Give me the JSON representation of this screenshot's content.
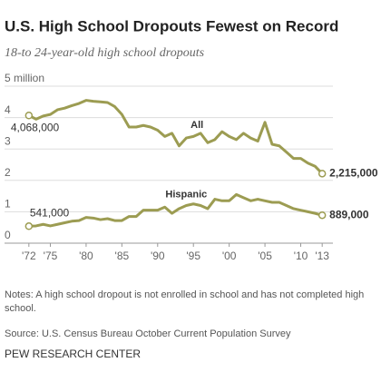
{
  "chart_data": {
    "type": "line",
    "title": "U.S. High School Dropouts Fewest on Record",
    "subtitle": "18-to 24-year-old high school dropouts",
    "x": [
      1972,
      1973,
      1974,
      1975,
      1976,
      1977,
      1978,
      1979,
      1980,
      1981,
      1982,
      1983,
      1984,
      1985,
      1986,
      1987,
      1988,
      1989,
      1990,
      1991,
      1992,
      1993,
      1994,
      1995,
      1996,
      1997,
      1998,
      1999,
      2000,
      2001,
      2002,
      2003,
      2004,
      2005,
      2006,
      2007,
      2008,
      2009,
      2010,
      2011,
      2012,
      2013
    ],
    "series": [
      {
        "name": "All",
        "color": "#9c9c52",
        "values": [
          4.068,
          3.95,
          4.05,
          4.1,
          4.25,
          4.3,
          4.38,
          4.45,
          4.55,
          4.52,
          4.5,
          4.48,
          4.35,
          4.1,
          3.7,
          3.7,
          3.75,
          3.7,
          3.6,
          3.4,
          3.5,
          3.1,
          3.35,
          3.4,
          3.5,
          3.2,
          3.3,
          3.55,
          3.4,
          3.3,
          3.5,
          3.35,
          3.25,
          3.85,
          3.15,
          3.1,
          2.9,
          2.7,
          2.7,
          2.55,
          2.45,
          2.215
        ],
        "value_labels": [
          "4,068,000",
          null,
          null,
          null,
          null,
          null,
          null,
          null,
          null,
          null,
          null,
          null,
          null,
          null,
          null,
          null,
          null,
          null,
          null,
          null,
          null,
          null,
          null,
          null,
          null,
          null,
          null,
          null,
          null,
          null,
          null,
          null,
          null,
          null,
          null,
          null,
          null,
          null,
          null,
          null,
          null,
          "2,215,000"
        ]
      },
      {
        "name": "Hispanic",
        "color": "#9c9c52",
        "values": [
          0.541,
          0.55,
          0.6,
          0.55,
          0.6,
          0.65,
          0.7,
          0.72,
          0.82,
          0.8,
          0.75,
          0.78,
          0.72,
          0.72,
          0.85,
          0.85,
          1.05,
          1.05,
          1.05,
          1.15,
          0.95,
          1.1,
          1.2,
          1.25,
          1.2,
          1.1,
          1.4,
          1.35,
          1.35,
          1.55,
          1.45,
          1.35,
          1.4,
          1.35,
          1.3,
          1.3,
          1.2,
          1.1,
          1.05,
          1.0,
          0.95,
          0.889
        ],
        "value_labels": [
          "541,000",
          null,
          null,
          null,
          null,
          null,
          null,
          null,
          null,
          null,
          null,
          null,
          null,
          null,
          null,
          null,
          null,
          null,
          null,
          null,
          null,
          null,
          null,
          null,
          null,
          null,
          null,
          null,
          null,
          null,
          null,
          null,
          null,
          null,
          null,
          null,
          null,
          null,
          null,
          null,
          null,
          "889,000"
        ]
      }
    ],
    "xlim": [
      1970.5,
      2014.5
    ],
    "xticks": [
      {
        "value": 1972,
        "label": "'72"
      },
      {
        "value": 1975,
        "label": "'75"
      },
      {
        "value": 1980,
        "label": "'80"
      },
      {
        "value": 1985,
        "label": "'85"
      },
      {
        "value": 1990,
        "label": "'90"
      },
      {
        "value": 1995,
        "label": "'95"
      },
      {
        "value": 2000,
        "label": "'00"
      },
      {
        "value": 2005,
        "label": "'05"
      },
      {
        "value": 2010,
        "label": "'10"
      },
      {
        "value": 2013,
        "label": "'13"
      }
    ],
    "ylim": [
      0,
      5
    ],
    "yticks": [
      0,
      1,
      2,
      3,
      4,
      {
        "value": 5,
        "label": "5 million"
      }
    ],
    "grid": true,
    "notes": "Notes: A high school dropout is not enrolled in school and has not completed high school.",
    "source": "Source: U.S. Census Bureau October Current Population Survey",
    "credit": "PEW RESEARCH CENTER"
  }
}
